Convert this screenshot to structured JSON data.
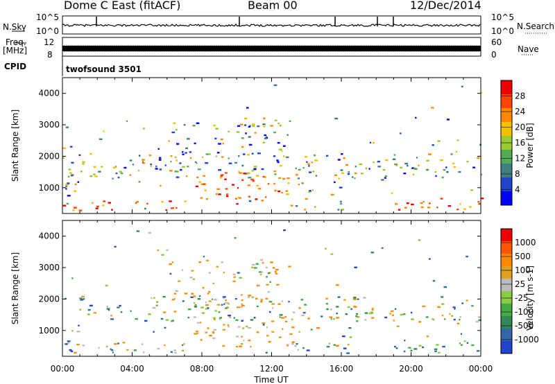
{
  "header": {
    "station": "Dome C East (fitACF)",
    "beam": "Beam 00",
    "date": "12/Dec/2014"
  },
  "top_panels": {
    "nsky_label": "N.Sky",
    "nsky_ticks_left": [
      "10^5",
      "10^0"
    ],
    "nsky_ticks_right": [
      "10^5",
      "10^0"
    ],
    "nsearch_label": "N.Search",
    "freq_label": "Freq.",
    "freq_unit": "[MHz]",
    "freq_ticks": [
      "12",
      "8"
    ],
    "nave_ticks": [
      "60",
      "0"
    ],
    "nave_label": "Nave",
    "cpid_label": "CPID",
    "cpid_value": "twofsound 3501"
  },
  "chart_data": [
    {
      "type": "heatmap",
      "name": "power",
      "ylabel": "Slant Range [km]",
      "yticks": [
        1000,
        2000,
        3000,
        4000
      ],
      "ylim": [
        180,
        4500
      ],
      "xlim": [
        0,
        24
      ],
      "xticks": [
        "00:00",
        "04:00",
        "08:00",
        "12:00",
        "16:00",
        "20:00",
        "00:00"
      ],
      "colorbar": {
        "label": "Power [dB]",
        "ticks": [
          "4",
          "8",
          "12",
          "16",
          "20",
          "24",
          "28"
        ],
        "colors": [
          "#0000ff",
          "#2244cc",
          "#3f7f7f",
          "#55aa55",
          "#99cc33",
          "#f0c000",
          "#ff8800",
          "#ff4400",
          "#ee0000"
        ]
      }
    },
    {
      "type": "heatmap",
      "name": "velocity",
      "ylabel": "Slant Range [km]",
      "yticks": [
        1000,
        2000,
        3000,
        4000
      ],
      "ylim": [
        180,
        4500
      ],
      "xlim": [
        0,
        24
      ],
      "xticks": [
        "00:00",
        "04:00",
        "08:00",
        "12:00",
        "16:00",
        "20:00",
        "00:00"
      ],
      "xlabel": "Time UT",
      "colorbar": {
        "label": "Velocity [m s-1]",
        "ticks": [
          "1000",
          "500",
          "100",
          "25",
          "-25",
          "-100",
          "-500",
          "-1000"
        ],
        "colors": [
          "#2244cc",
          "#3366aa",
          "#338855",
          "#44aa44",
          "#88cc44",
          "#bbbbbb",
          "#e0a020",
          "#ff8800",
          "#ff5500",
          "#ee0000"
        ]
      }
    }
  ]
}
